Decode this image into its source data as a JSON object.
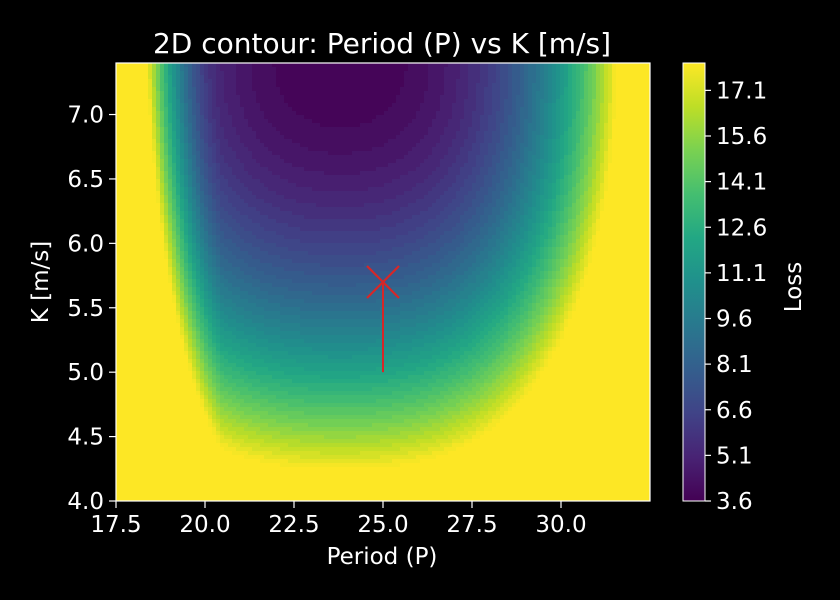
{
  "chart_data": {
    "type": "contour",
    "title": "2D contour: Period (P) vs K [m/s]",
    "xlabel": "Period (P)",
    "ylabel": "K [m/s]",
    "xlim": [
      17.5,
      32.5
    ],
    "ylim": [
      4.0,
      7.4
    ],
    "xticks": [
      17.5,
      20.0,
      22.5,
      25.0,
      27.5,
      30.0
    ],
    "xtick_labels": [
      "17.5",
      "20.0",
      "22.5",
      "25.0",
      "27.5",
      "30.0"
    ],
    "yticks": [
      4.0,
      4.5,
      5.0,
      5.5,
      6.0,
      6.5,
      7.0
    ],
    "ytick_labels": [
      "4.0",
      "4.5",
      "5.0",
      "5.5",
      "6.0",
      "6.5",
      "7.0"
    ],
    "colormap": "viridis",
    "colorbar": {
      "label": "Loss",
      "range": [
        3.6,
        18.0
      ],
      "ticks": [
        3.6,
        5.1,
        6.6,
        8.1,
        9.6,
        11.1,
        12.6,
        14.1,
        15.6,
        17.1
      ],
      "tick_labels": [
        "3.6",
        "5.1",
        "6.6",
        "8.1",
        "9.6",
        "11.1",
        "12.6",
        "14.1",
        "15.6",
        "17.1"
      ]
    },
    "minimum_region": {
      "x": 23.8,
      "y": 7.4
    },
    "marker": {
      "x": 25.0,
      "y": 5.7,
      "symbol": "x",
      "color": "#d62728"
    },
    "marker_line": {
      "x": [
        25.0,
        25.0
      ],
      "y": [
        5.0,
        5.7
      ],
      "color": "#d62728"
    }
  }
}
